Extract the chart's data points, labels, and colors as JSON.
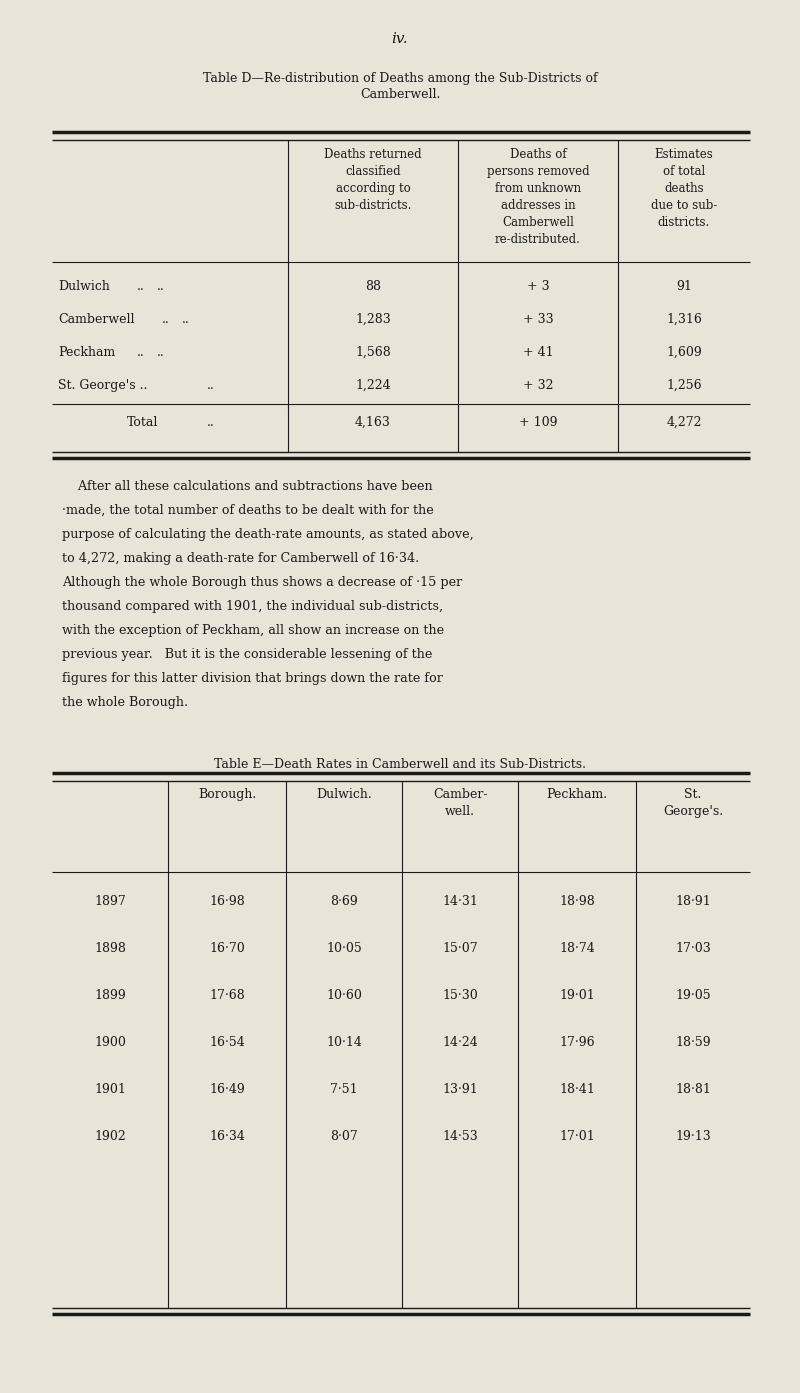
{
  "page_number": "iv.",
  "bg_color": "#e8e4d8",
  "text_color": "#1a1a1a",
  "table_d_title_line1": "Table D—Re-distribution of Deaths among the Sub-Districts of",
  "table_d_title_line2": "Camberwell.",
  "table_d_col_headers": [
    "Deaths returned\nclassified\naccording to\nsub-districts.",
    "Deaths of\npersons removed\nfrom unknown\naddresses in\nCamberwell\nre-distributed.",
    "Estimates\nof total\ndeaths\ndue to sub-\ndistricts."
  ],
  "table_d_row_labels": [
    "Dulwich",
    "Camberwell",
    "Peckham",
    "St. George's .."
  ],
  "table_d_col1": [
    "88",
    "1,283",
    "1,568",
    "1,224"
  ],
  "table_d_col2": [
    "+ 3",
    "+ 33",
    "+ 41",
    "+ 32"
  ],
  "table_d_col3": [
    "91",
    "1,316",
    "1,609",
    "1,256"
  ],
  "table_d_total": [
    "Total",
    "4,163",
    "+ 109",
    "4,272"
  ],
  "para_lines": [
    "    After all these calculations and subtractions have been",
    "·made, the total number of deaths to be dealt with for the",
    "purpose of calculating the death-rate amounts, as stated above,",
    "to 4,272, making a death-rate for Camberwell of 16·34.",
    "Although the whole Borough thus shows a decrease of ·15 per",
    "thousand compared with 1901, the individual sub-districts,",
    "with the exception of Peckham, all show an increase on the",
    "previous year.   But it is the considerable lessening of the",
    "figures for this latter division that brings down the rate for",
    "the whole Borough."
  ],
  "table_e_title": "Table E—Death Rates in Camberwell and its Sub-Districts.",
  "table_e_col_headers": [
    "",
    "Borough.",
    "Dulwich.",
    "Camber-\nwell.",
    "Peckham.",
    "St.\nGeorge's."
  ],
  "table_e_rows": [
    [
      "1897",
      "16·98",
      "8·69",
      "14·31",
      "18·98",
      "18·91"
    ],
    [
      "1898",
      "16·70",
      "10·05",
      "15·07",
      "18·74",
      "17·03"
    ],
    [
      "1899",
      "17·68",
      "10·60",
      "15·30",
      "19·01",
      "19·05"
    ],
    [
      "1900",
      "16·54",
      "10·14",
      "14·24",
      "17·96",
      "18·59"
    ],
    [
      "1901",
      "16·49",
      "7·51",
      "13·91",
      "18·41",
      "18·81"
    ],
    [
      "1902",
      "16·34",
      "8·07",
      "14·53",
      "17·01",
      "19·13"
    ]
  ]
}
